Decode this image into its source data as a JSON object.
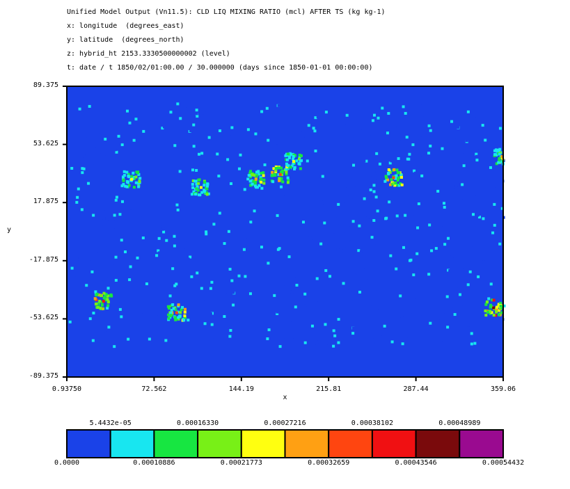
{
  "header": {
    "lines": [
      "Unified Model Output (Vn11.5): CLD LIQ MIXING RATIO (mcl) AFTER TS (kg kg-1)",
      "x: longitude  (degrees_east)",
      "y: latitude  (degrees_north)",
      "z: hybrid_ht 2153.3330500000002 (level)",
      "t: date / t 1850/02/01:00.00 / 30.000000 (days since 1850-01-01 00:00:00)"
    ]
  },
  "chart_data": {
    "type": "heatmap",
    "xlabel": "x",
    "ylabel": "y",
    "xlim": [
      0.9375,
      359.06
    ],
    "ylim": [
      -89.375,
      89.375
    ],
    "x_ticks": [
      "0.93750",
      "72.562",
      "144.19",
      "215.81",
      "287.44",
      "359.06"
    ],
    "y_ticks": [
      "89.375",
      "53.625",
      "17.875",
      "-17.875",
      "-53.625",
      "-89.375"
    ],
    "background_value": 0.0,
    "hotspots": [
      {
        "lon": 175,
        "lat": 36,
        "value": 0.00038
      },
      {
        "lon": 155,
        "lat": 33,
        "value": 0.0003
      },
      {
        "lon": 186,
        "lat": 44,
        "value": 0.00025
      },
      {
        "lon": 30,
        "lat": -42,
        "value": 0.0004
      },
      {
        "lon": 268,
        "lat": 34,
        "value": 0.00035
      },
      {
        "lon": 350,
        "lat": -46,
        "value": 0.00045
      },
      {
        "lon": 357,
        "lat": 47,
        "value": 0.0003
      },
      {
        "lon": 90,
        "lat": -49,
        "value": 0.00035
      },
      {
        "lon": 53,
        "lat": 33,
        "value": 0.00022
      },
      {
        "lon": 110,
        "lat": 28,
        "value": 0.00022
      }
    ],
    "colorbar": {
      "colors": [
        "#1a42e8",
        "#18e6f0",
        "#17e641",
        "#78f017",
        "#ffff10",
        "#ffa013",
        "#ff4510",
        "#f01012",
        "#7a0a0c",
        "#9a0a90"
      ],
      "lower_labels": [
        "0.0000",
        "0.00010886",
        "0.00021773",
        "0.00032659",
        "0.00043546",
        "0.00054432"
      ],
      "upper_labels": [
        "5.4432e-05",
        "0.00016330",
        "0.00027216",
        "0.00038102",
        "0.00048989"
      ]
    }
  }
}
